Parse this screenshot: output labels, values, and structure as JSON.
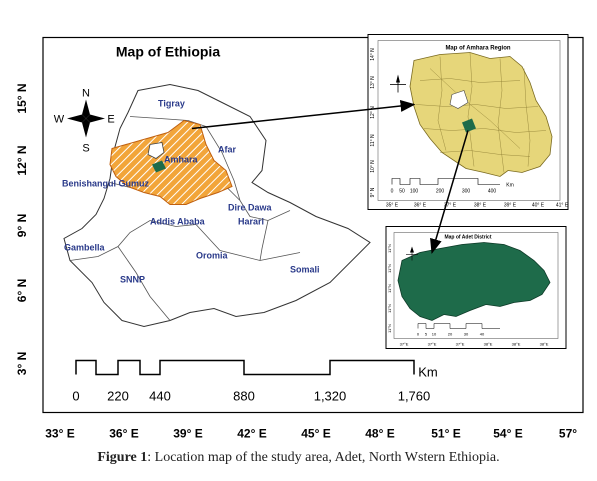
{
  "main_map": {
    "title": "Map of Ethiopia",
    "lat_labels": [
      "15° N",
      "12° N",
      "9° N",
      "6° N",
      "3° N"
    ],
    "lon_labels": [
      "33° E",
      "36° E",
      "39° E",
      "42° E",
      "45° E",
      "48° E",
      "51° E",
      "54° E",
      "57°"
    ],
    "regions": [
      "Tigray",
      "Afar",
      "Amhara",
      "Benishangul Gumuz",
      "Addis Ababa",
      "Dire Dawa",
      "Harari",
      "Gambella",
      "Oromia",
      "SNNP",
      "Somali"
    ],
    "compass": {
      "n": "N",
      "s": "S",
      "e": "E",
      "w": "W"
    },
    "scale": {
      "unit": "Km",
      "ticks": [
        "0",
        "220",
        "440",
        "880",
        "1,320",
        "1,760"
      ]
    }
  },
  "inset_amhara": {
    "title": "Map of Amhara Region",
    "lat_labels": [
      "14° N",
      "13° N",
      "12° N",
      "11° N",
      "10° N",
      "9° N"
    ],
    "lon_labels": [
      "35° E",
      "36° E",
      "37° E",
      "38° E",
      "39° E",
      "40° E",
      "41° E"
    ],
    "scale": {
      "unit": "Km",
      "ticks": [
        "0",
        "50",
        "100",
        "200",
        "300",
        "400"
      ]
    }
  },
  "inset_adet": {
    "title": "Map of Adet District",
    "lat_labels": [
      "11°N",
      "11°N",
      "11°N",
      "11°N",
      "11°N"
    ],
    "lon_labels": [
      "37°E",
      "37°E",
      "37°E",
      "38°E",
      "38°E",
      "38°E"
    ],
    "scale": {
      "ticks": [
        "0",
        "5",
        "10",
        "20",
        "30",
        "40"
      ]
    }
  },
  "caption": {
    "label": "Figure 1",
    "text": ": Location map of the study area, Adet, North Wstern Ethiopia."
  },
  "colors": {
    "amhara_fill": "#f0a030",
    "amhara_region_fill": "#e6d67a",
    "adet_fill": "#1e6b4a",
    "arrow": "#000000"
  }
}
